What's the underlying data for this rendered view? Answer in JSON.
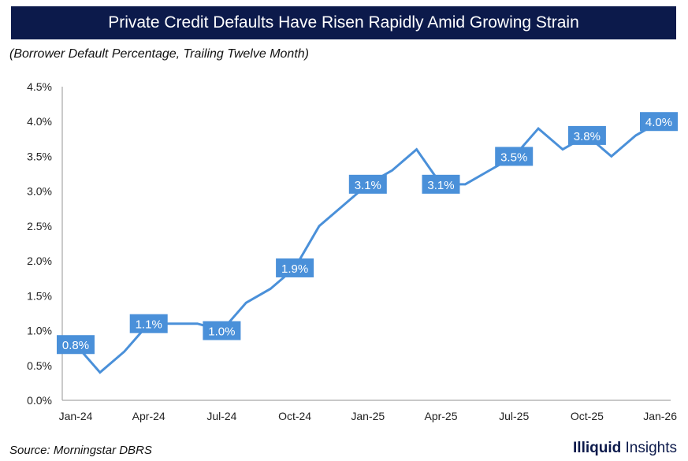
{
  "chart_data": {
    "type": "line",
    "title": "Private Credit Defaults Have Risen Rapidly Amid Growing Strain",
    "subtitle": "(Borrower Default Percentage, Trailing Twelve Month)",
    "xlabel": "",
    "ylabel": "",
    "x": [
      "Jan-24",
      "Feb-24",
      "Mar-24",
      "Apr-24",
      "May-24",
      "Jun-24",
      "Jul-24",
      "Aug-24",
      "Sep-24",
      "Oct-24",
      "Nov-24",
      "Dec-24",
      "Jan-25",
      "Feb-25",
      "Mar-25",
      "Apr-25",
      "May-25",
      "Jun-25",
      "Jul-25",
      "Aug-25",
      "Sep-25",
      "Oct-25",
      "Nov-25",
      "Dec-25",
      "Jan-26"
    ],
    "series": [
      {
        "name": "Borrower Default Percentage",
        "color": "#4a90d9",
        "values": [
          0.8,
          0.4,
          0.7,
          1.1,
          1.1,
          1.1,
          1.0,
          1.4,
          1.6,
          1.9,
          2.5,
          2.8,
          3.1,
          3.3,
          3.6,
          3.1,
          3.1,
          3.3,
          3.5,
          3.9,
          3.6,
          3.8,
          3.5,
          3.8,
          4.0
        ]
      }
    ],
    "data_labels": [
      {
        "x": "Jan-24",
        "text": "0.8%"
      },
      {
        "x": "Apr-24",
        "text": "1.1%"
      },
      {
        "x": "Jul-24",
        "text": "1.0%"
      },
      {
        "x": "Oct-24",
        "text": "1.9%"
      },
      {
        "x": "Jan-25",
        "text": "3.1%"
      },
      {
        "x": "Apr-25",
        "text": "3.1%"
      },
      {
        "x": "Jul-25",
        "text": "3.5%"
      },
      {
        "x": "Oct-25",
        "text": "3.8%"
      },
      {
        "x": "Jan-26",
        "text": "4.0%"
      }
    ],
    "xticks": [
      "Jan-24",
      "Apr-24",
      "Jul-24",
      "Oct-24",
      "Jan-25",
      "Apr-25",
      "Jul-25",
      "Oct-25",
      "Jan-26"
    ],
    "yticks": [
      "0.0%",
      "0.5%",
      "1.0%",
      "1.5%",
      "2.0%",
      "2.5%",
      "3.0%",
      "3.5%",
      "4.0%",
      "4.5%"
    ],
    "ylim": [
      0,
      4.5
    ],
    "grid": false,
    "legend": "none"
  },
  "footer": {
    "source": "Source: Morningstar DBRS",
    "logo_bold": "Illiquid",
    "logo_light": "Insights"
  },
  "colors": {
    "title_bg": "#0c1a4b",
    "line": "#4a90d9",
    "axis": "#a6a6a6"
  }
}
